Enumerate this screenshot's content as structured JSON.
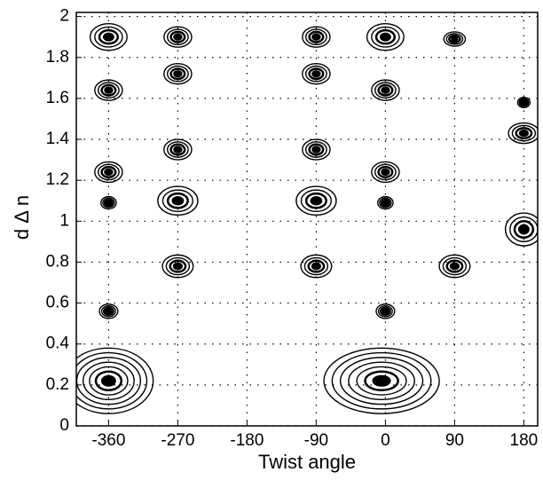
{
  "chart_data": {
    "type": "contour",
    "x_label": "Twist angle",
    "y_label": "d Δ n",
    "xlim": [
      -402,
      198
    ],
    "ylim": [
      0,
      2.02
    ],
    "xticks": [
      -360,
      -270,
      -180,
      -90,
      0,
      90,
      180
    ],
    "yticks": [
      0,
      0.2,
      0.4,
      0.6,
      0.8,
      1,
      1.2,
      1.4,
      1.6,
      1.8,
      2
    ],
    "grid": true,
    "color": "#000000",
    "peaks": [
      {
        "x": -360,
        "y": 1.9,
        "wx": 24,
        "wy": 0.065
      },
      {
        "x": -270,
        "y": 1.9,
        "wx": 18,
        "wy": 0.05
      },
      {
        "x": -90,
        "y": 1.9,
        "wx": 18,
        "wy": 0.05
      },
      {
        "x": 0,
        "y": 1.9,
        "wx": 24,
        "wy": 0.065
      },
      {
        "x": 90,
        "y": 1.89,
        "wx": 14,
        "wy": 0.035
      },
      {
        "x": -270,
        "y": 1.72,
        "wx": 18,
        "wy": 0.05
      },
      {
        "x": -90,
        "y": 1.72,
        "wx": 18,
        "wy": 0.05
      },
      {
        "x": -360,
        "y": 1.64,
        "wx": 18,
        "wy": 0.05
      },
      {
        "x": 0,
        "y": 1.64,
        "wx": 18,
        "wy": 0.05
      },
      {
        "x": 180,
        "y": 1.58,
        "wx": 8,
        "wy": 0.025
      },
      {
        "x": 180,
        "y": 1.43,
        "wx": 20,
        "wy": 0.05
      },
      {
        "x": -270,
        "y": 1.35,
        "wx": 18,
        "wy": 0.05
      },
      {
        "x": -90,
        "y": 1.35,
        "wx": 18,
        "wy": 0.05
      },
      {
        "x": -360,
        "y": 1.24,
        "wx": 18,
        "wy": 0.05
      },
      {
        "x": 0,
        "y": 1.24,
        "wx": 18,
        "wy": 0.05
      },
      {
        "x": -360,
        "y": 1.09,
        "wx": 10,
        "wy": 0.03
      },
      {
        "x": -270,
        "y": 1.1,
        "wx": 26,
        "wy": 0.07
      },
      {
        "x": -90,
        "y": 1.1,
        "wx": 26,
        "wy": 0.07
      },
      {
        "x": 0,
        "y": 1.09,
        "wx": 10,
        "wy": 0.03
      },
      {
        "x": 180,
        "y": 0.96,
        "wx": 24,
        "wy": 0.08
      },
      {
        "x": -270,
        "y": 0.78,
        "wx": 20,
        "wy": 0.055
      },
      {
        "x": -90,
        "y": 0.78,
        "wx": 20,
        "wy": 0.055
      },
      {
        "x": 90,
        "y": 0.78,
        "wx": 20,
        "wy": 0.055
      },
      {
        "x": -360,
        "y": 0.56,
        "wx": 12,
        "wy": 0.035
      },
      {
        "x": 0,
        "y": 0.56,
        "wx": 12,
        "wy": 0.035
      },
      {
        "x": -360,
        "y": 0.22,
        "wx": 58,
        "wy": 0.16
      },
      {
        "x": -5,
        "y": 0.22,
        "wx": 75,
        "wy": 0.16
      }
    ]
  }
}
